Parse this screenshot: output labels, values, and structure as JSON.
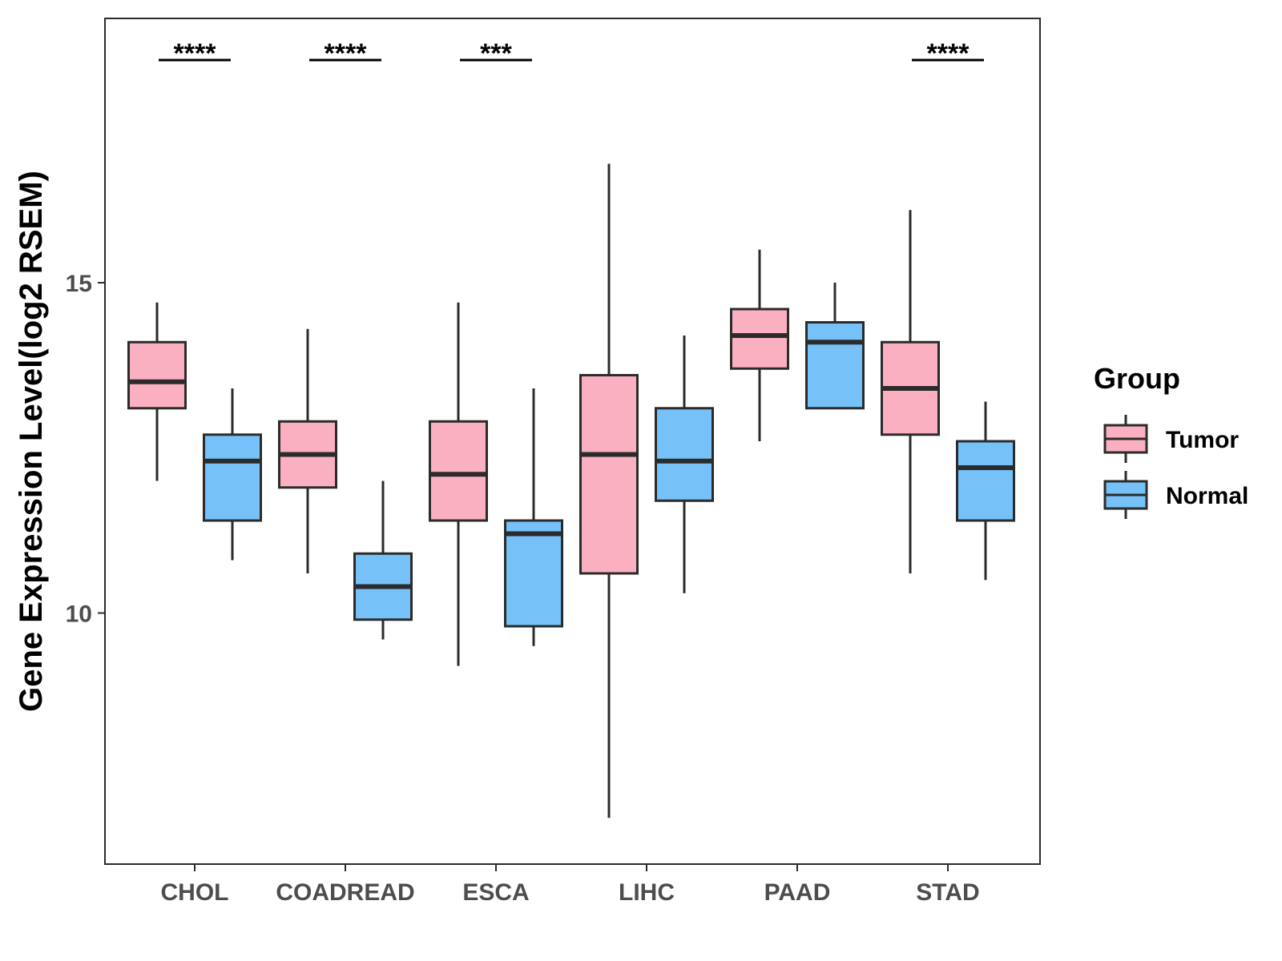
{
  "chart_data": {
    "type": "boxplot",
    "title": "",
    "xlabel": "",
    "ylabel": "Gene Expression Level(log2 RSEM)",
    "ylim": [
      6.2,
      19.0
    ],
    "yticks": [
      10,
      15
    ],
    "categories": [
      "CHOL",
      "COADREAD",
      "ESCA",
      "LIHC",
      "PAAD",
      "STAD"
    ],
    "legend": {
      "title": "Group",
      "position": "right",
      "entries": [
        "Tumor",
        "Normal"
      ]
    },
    "colors": {
      "Tumor": "#FBB0C2",
      "Normal": "#75C1F8",
      "outline": "#2b2b2b"
    },
    "series": [
      {
        "name": "Tumor",
        "boxes": [
          {
            "min": 12.0,
            "q1": 13.1,
            "median": 13.5,
            "q3": 14.1,
            "max": 14.7
          },
          {
            "min": 10.6,
            "q1": 11.9,
            "median": 12.4,
            "q3": 12.9,
            "max": 14.3
          },
          {
            "min": 9.2,
            "q1": 11.4,
            "median": 12.1,
            "q3": 12.9,
            "max": 14.7
          },
          {
            "min": 6.9,
            "q1": 10.6,
            "median": 12.4,
            "q3": 13.6,
            "max": 16.8
          },
          {
            "min": 12.6,
            "q1": 13.7,
            "median": 14.2,
            "q3": 14.6,
            "max": 15.5
          },
          {
            "min": 10.6,
            "q1": 12.7,
            "median": 13.4,
            "q3": 14.1,
            "max": 16.1
          }
        ]
      },
      {
        "name": "Normal",
        "boxes": [
          {
            "min": 10.8,
            "q1": 11.4,
            "median": 12.3,
            "q3": 12.7,
            "max": 13.4
          },
          {
            "min": 9.6,
            "q1": 9.9,
            "median": 10.4,
            "q3": 10.9,
            "max": 12.0
          },
          {
            "min": 9.5,
            "q1": 9.8,
            "median": 11.2,
            "q3": 11.4,
            "max": 13.4
          },
          {
            "min": 10.3,
            "q1": 11.7,
            "median": 12.3,
            "q3": 13.1,
            "max": 14.2
          },
          {
            "min": 13.1,
            "q1": 13.1,
            "median": 14.1,
            "q3": 14.4,
            "max": 15.0
          },
          {
            "min": 10.5,
            "q1": 11.4,
            "median": 12.2,
            "q3": 12.6,
            "max": 13.2
          }
        ]
      }
    ],
    "significance": [
      "****",
      "****",
      "***",
      "",
      "",
      "****"
    ]
  }
}
